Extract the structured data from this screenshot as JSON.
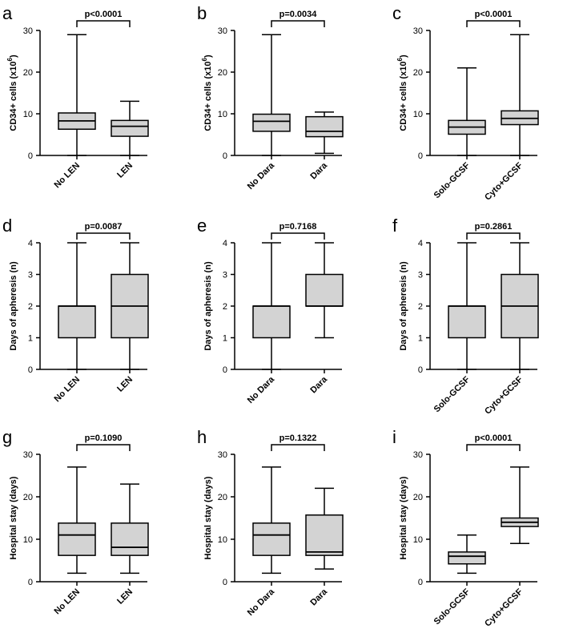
{
  "chart_data": [
    {
      "id": "a",
      "type": "box",
      "panel_label": "a",
      "ylabel": "CD34+ cells (x10^6)",
      "ylabel_base": "CD34+ cells (x10",
      "ylabel_exp": "6",
      "ylabel_close": ")",
      "ylim": [
        0,
        30
      ],
      "yticks": [
        0,
        10,
        20,
        30
      ],
      "categories": [
        "No LEN",
        "LEN"
      ],
      "boxes": [
        {
          "min": 0,
          "q1": 6.3,
          "median": 8.3,
          "q3": 10.2,
          "max": 29
        },
        {
          "min": 0,
          "q1": 4.6,
          "median": 7.0,
          "q3": 8.4,
          "max": 13
        }
      ],
      "pvalue": "p<0.0001"
    },
    {
      "id": "b",
      "type": "box",
      "panel_label": "b",
      "ylabel": "CD34+ cells (x10^6)",
      "ylabel_base": "CD34+ cells (x10",
      "ylabel_exp": "6",
      "ylabel_close": ")",
      "ylim": [
        0,
        30
      ],
      "yticks": [
        0,
        10,
        20,
        30
      ],
      "categories": [
        "No Dara",
        "Dara"
      ],
      "boxes": [
        {
          "min": 0,
          "q1": 5.8,
          "median": 8.2,
          "q3": 9.9,
          "max": 29
        },
        {
          "min": 0.5,
          "q1": 4.5,
          "median": 5.8,
          "q3": 9.3,
          "max": 10.4
        }
      ],
      "pvalue": "p=0.0034"
    },
    {
      "id": "c",
      "type": "box",
      "panel_label": "c",
      "ylabel": "CD34+ cells (x10^6)",
      "ylabel_base": "CD34+ cells (x10",
      "ylabel_exp": "6",
      "ylabel_close": ")",
      "ylim": [
        0,
        30
      ],
      "yticks": [
        0,
        10,
        20,
        30
      ],
      "categories": [
        "Solo-GCSF",
        "Cyto+GCSF"
      ],
      "boxes": [
        {
          "min": 0,
          "q1": 5.1,
          "median": 6.8,
          "q3": 8.4,
          "max": 21
        },
        {
          "min": 0,
          "q1": 7.4,
          "median": 8.9,
          "q3": 10.7,
          "max": 29
        }
      ],
      "pvalue": "p<0.0001"
    },
    {
      "id": "d",
      "type": "box",
      "panel_label": "d",
      "ylabel": "Days of apheresis (n)",
      "ylim": [
        0,
        4
      ],
      "yticks": [
        0,
        1,
        2,
        3,
        4
      ],
      "categories": [
        "No LEN",
        "LEN"
      ],
      "boxes": [
        {
          "min": 0,
          "q1": 1,
          "median": 2,
          "q3": 2,
          "max": 4
        },
        {
          "min": 0,
          "q1": 1,
          "median": 2,
          "q3": 3,
          "max": 4
        }
      ],
      "pvalue": "p=0.0087"
    },
    {
      "id": "e",
      "type": "box",
      "panel_label": "e",
      "ylabel": "Days of apheresis (n)",
      "ylim": [
        0,
        4
      ],
      "yticks": [
        0,
        1,
        2,
        3,
        4
      ],
      "categories": [
        "No Dara",
        "Dara"
      ],
      "boxes": [
        {
          "min": 0,
          "q1": 1,
          "median": 2,
          "q3": 2,
          "max": 4
        },
        {
          "min": 1,
          "q1": 2,
          "median": 2,
          "q3": 3,
          "max": 4
        }
      ],
      "pvalue": "p=0.7168"
    },
    {
      "id": "f",
      "type": "box",
      "panel_label": "f",
      "ylabel": "Days of apheresis (n)",
      "ylim": [
        0,
        4
      ],
      "yticks": [
        0,
        1,
        2,
        3,
        4
      ],
      "categories": [
        "Solo-GCSF",
        "Cyto+GCSF"
      ],
      "boxes": [
        {
          "min": 0,
          "q1": 1,
          "median": 2,
          "q3": 2,
          "max": 4
        },
        {
          "min": 0,
          "q1": 1,
          "median": 2,
          "q3": 3,
          "max": 4
        }
      ],
      "pvalue": "p=0.2861"
    },
    {
      "id": "g",
      "type": "box",
      "panel_label": "g",
      "ylabel": "Hospital stay (days)",
      "ylim": [
        0,
        30
      ],
      "yticks": [
        0,
        10,
        20,
        30
      ],
      "categories": [
        "No LEN",
        "LEN"
      ],
      "boxes": [
        {
          "min": 2,
          "q1": 6.2,
          "median": 11,
          "q3": 13.8,
          "max": 27
        },
        {
          "min": 2,
          "q1": 6.2,
          "median": 8.1,
          "q3": 13.8,
          "max": 23
        }
      ],
      "pvalue": "p=0.1090"
    },
    {
      "id": "h",
      "type": "box",
      "panel_label": "h",
      "ylabel": "Hospital stay (days)",
      "ylim": [
        0,
        30
      ],
      "yticks": [
        0,
        10,
        20,
        30
      ],
      "categories": [
        "No Dara",
        "Dara"
      ],
      "boxes": [
        {
          "min": 2,
          "q1": 6.2,
          "median": 11,
          "q3": 13.8,
          "max": 27
        },
        {
          "min": 3,
          "q1": 6.2,
          "median": 7,
          "q3": 15.7,
          "max": 22
        }
      ],
      "pvalue": "p=0.1322"
    },
    {
      "id": "i",
      "type": "box",
      "panel_label": "i",
      "ylabel": "Hospital stay (days)",
      "ylim": [
        0,
        30
      ],
      "yticks": [
        0,
        10,
        20,
        30
      ],
      "categories": [
        "Solo-GCSF",
        "Cyto+GCSF"
      ],
      "boxes": [
        {
          "min": 2,
          "q1": 4.2,
          "median": 6,
          "q3": 7,
          "max": 11
        },
        {
          "min": 9,
          "q1": 13,
          "median": 14,
          "q3": 15,
          "max": 27
        }
      ],
      "pvalue": "p<0.0001"
    }
  ],
  "colors": {
    "box_fill": "#d3d3d3",
    "stroke": "#000000"
  }
}
